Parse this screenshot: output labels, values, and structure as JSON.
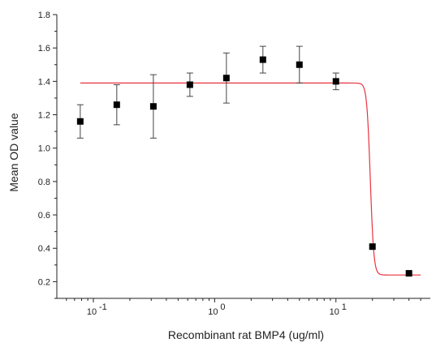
{
  "chart_data": {
    "type": "scatter",
    "xlabel": "Recombinant rat BMP4 (ug/ml)",
    "ylabel": "Mean OD value",
    "x_scale": "log",
    "xlim": [
      0.05,
      60
    ],
    "ylim": [
      0.1,
      1.8
    ],
    "x_ticks": [
      {
        "value": 0.1,
        "base": "10",
        "exp": "-1"
      },
      {
        "value": 1,
        "base": "10",
        "exp": "0"
      },
      {
        "value": 10,
        "base": "10",
        "exp": "1"
      }
    ],
    "y_ticks": [
      "0.2",
      "0.4",
      "0.6",
      "0.8",
      "1.0",
      "1.2",
      "1.4",
      "1.6",
      "1.8"
    ],
    "points": {
      "x": [
        0.078,
        0.156,
        0.3125,
        0.625,
        1.25,
        2.5,
        5,
        10,
        20,
        40
      ],
      "y": [
        1.16,
        1.26,
        1.25,
        1.38,
        1.42,
        1.53,
        1.5,
        1.4,
        0.41,
        0.25
      ],
      "err": [
        0.1,
        0.12,
        0.19,
        0.07,
        0.15,
        0.08,
        0.11,
        0.05,
        0.0,
        0.0
      ],
      "marker_color": "#000000"
    },
    "fit_curve": {
      "top": 1.39,
      "bottom": 0.24,
      "ec50": 19.2,
      "hill": 30,
      "x_range": [
        0.078,
        50
      ],
      "color": "#e8333f"
    },
    "grid": false
  }
}
